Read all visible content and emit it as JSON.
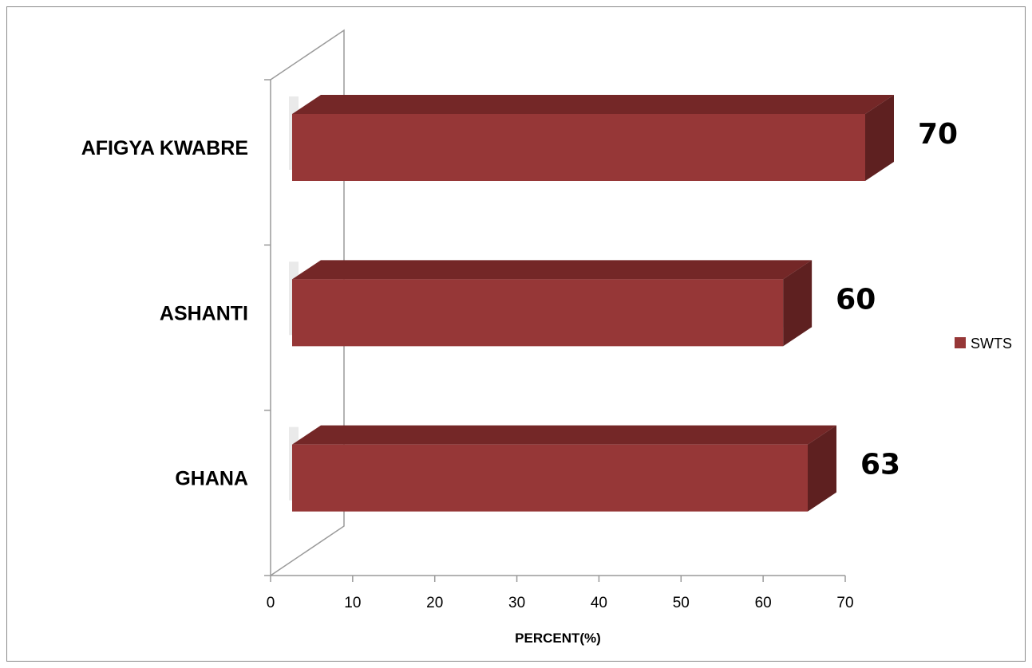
{
  "chart_data": {
    "type": "bar",
    "orientation": "horizontal",
    "three_d": true,
    "categories": [
      "AFIGYA KWABRE",
      "ASHANTI",
      "GHANA"
    ],
    "series": [
      {
        "name": "SWTS",
        "values": [
          70,
          60,
          63
        ]
      }
    ],
    "data_labels": [
      "70",
      "60",
      "63"
    ],
    "xlabel": "PERCENT(%)",
    "ylabel": "",
    "xlim": [
      0,
      70
    ],
    "x_ticks": [
      "0",
      "10",
      "20",
      "30",
      "40",
      "50",
      "60",
      "70"
    ],
    "grid": false,
    "legend_position": "right",
    "colors": {
      "bar_front": "#963737",
      "bar_top": "#742727",
      "bar_side": "#5e2020",
      "frame": "#8a8a8a"
    }
  }
}
